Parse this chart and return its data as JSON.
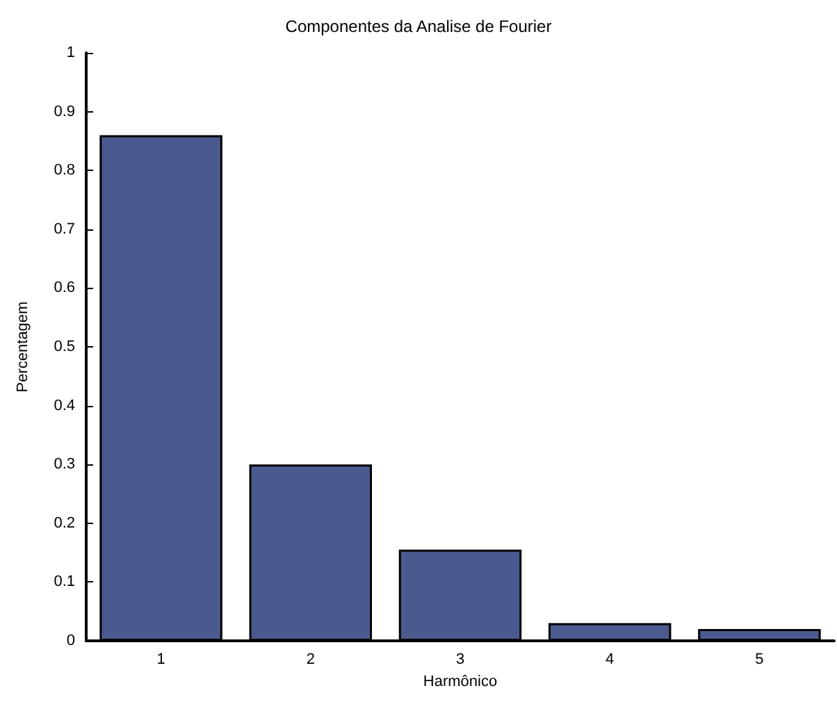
{
  "chart_data": {
    "type": "bar",
    "title": "Componentes da Analise de Fourier",
    "xlabel": "Harmônico",
    "ylabel": "Percentagem",
    "categories": [
      "1",
      "2",
      "3",
      "4",
      "5"
    ],
    "values": [
      0.86,
      0.3,
      0.155,
      0.03,
      0.02
    ],
    "color": "#4b5a8e",
    "ylim": [
      0,
      1
    ],
    "yticks": [
      0,
      0.1,
      0.2,
      0.3,
      0.4,
      0.5,
      0.6,
      0.7,
      0.8,
      0.9,
      1
    ],
    "grid": false
  }
}
